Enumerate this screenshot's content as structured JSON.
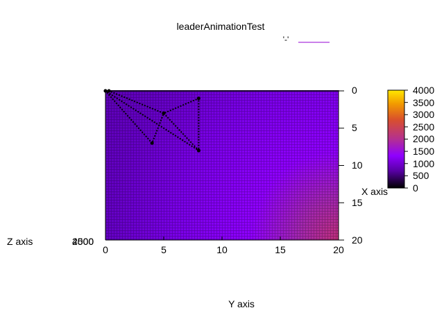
{
  "chart_data": {
    "type": "heatmap",
    "title": "leaderAnimationTest",
    "legend_entry": "'-'",
    "xlabel": "Y axis",
    "ylabel": "X axis",
    "zlabel": "Z axis",
    "z_overlap_label_a": "2500",
    "z_overlap_label_b": "4000",
    "x_ticks": [
      "0",
      "5",
      "10",
      "15",
      "20"
    ],
    "y_ticks": [
      "0",
      "5",
      "10",
      "15",
      "20"
    ],
    "colorbar_ticks": [
      "4000",
      "3500",
      "3000",
      "2500",
      "2000",
      "1500",
      "1000",
      "500",
      "0"
    ],
    "xlim": [
      0,
      20
    ],
    "ylim": [
      20,
      0
    ],
    "zlim": [
      0,
      4000
    ],
    "palette": [
      "#000000",
      "#5a00a8",
      "#8f00ff",
      "#b43090",
      "#d9502c",
      "#f29a00",
      "#ffe800"
    ],
    "legend_line_color": "#9400d3",
    "path_color": "#000000",
    "path": [
      {
        "x": 0,
        "y": 0
      },
      {
        "x": 0.3,
        "y": 0
      },
      {
        "x": 5,
        "y": 3
      },
      {
        "x": 8,
        "y": 1
      },
      {
        "x": 8,
        "y": 8
      },
      {
        "x": 5,
        "y": 3
      },
      {
        "x": 4,
        "y": 7
      },
      {
        "x": 0,
        "y": 0
      },
      {
        "x": 8,
        "y": 8
      }
    ]
  }
}
